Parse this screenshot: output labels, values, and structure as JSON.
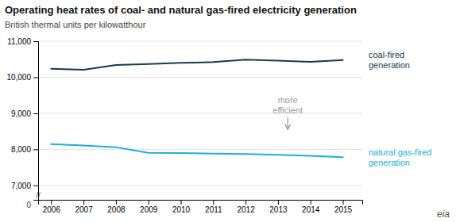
{
  "chart_data": {
    "type": "line",
    "title": "Operating heat rates of coal- and natural gas-fired electricity generation",
    "subtitle": "British thermal units per kilowatthour",
    "x": [
      2006,
      2007,
      2008,
      2009,
      2010,
      2011,
      2012,
      2013,
      2014,
      2015
    ],
    "series": [
      {
        "name": "coal-fired\ngeneration",
        "color": "#1a3a4a",
        "values": [
          10238,
          10209,
          10340,
          10370,
          10400,
          10420,
          10490,
          10460,
          10430,
          10480
        ]
      },
      {
        "name": "natural gas-fired\ngeneration",
        "color": "#1ab0d8",
        "values": [
          8143,
          8108,
          8060,
          7905,
          7900,
          7880,
          7870,
          7850,
          7820,
          7780
        ]
      }
    ],
    "xlim": [
      2005.6,
      2015.6
    ],
    "xticks": [
      2006,
      2007,
      2008,
      2009,
      2010,
      2011,
      2012,
      2013,
      2014,
      2015
    ],
    "ylim": [
      6600,
      11000
    ],
    "yticks": [
      {
        "value": 7000,
        "label": "7,000"
      },
      {
        "value": 8000,
        "label": "8,000"
      },
      {
        "value": 9000,
        "label": "9,000"
      },
      {
        "value": 10000,
        "label": "10,000"
      },
      {
        "value": 11000,
        "label": "11,000"
      }
    ],
    "grid": true,
    "annotations": [
      {
        "text": "more\nefficient",
        "x": 2013.3,
        "y": 8900,
        "y_end": 8550,
        "color": "#999999"
      }
    ],
    "axis_break_labels": [
      "//",
      "0"
    ],
    "logo": "eia"
  }
}
